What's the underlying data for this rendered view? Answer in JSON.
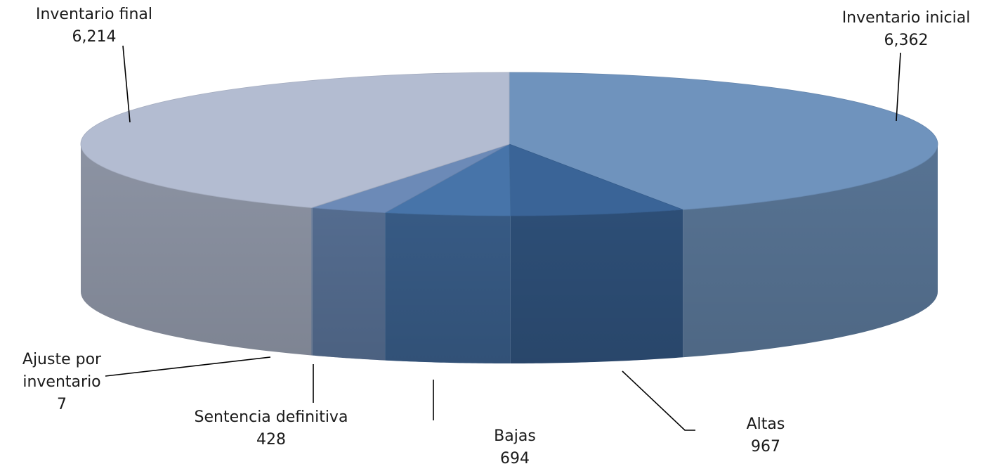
{
  "chart_data": {
    "type": "pie",
    "title": "",
    "categories": [
      "Inventario inicial",
      "Altas",
      "Bajas",
      "Sentencia definitiva",
      "Ajuste por inventario",
      "Inventario final"
    ],
    "values": [
      6362,
      967,
      694,
      428,
      7,
      6214
    ],
    "value_labels": [
      "6,362",
      "967",
      "694",
      "428",
      "7",
      "6,214"
    ],
    "label_lines": [
      [
        "Inventario inicial"
      ],
      [
        "Altas"
      ],
      [
        "Bajas"
      ],
      [
        "Sentencia definitiva"
      ],
      [
        "Ajuste por",
        "inventario"
      ],
      [
        "Inventario final"
      ]
    ],
    "colors": [
      "#6f93bd",
      "#3a6497",
      "#4774a9",
      "#6c8ab7",
      "#8ea4c6",
      "#b3bcd1"
    ],
    "legend": "none",
    "style": "3d"
  }
}
